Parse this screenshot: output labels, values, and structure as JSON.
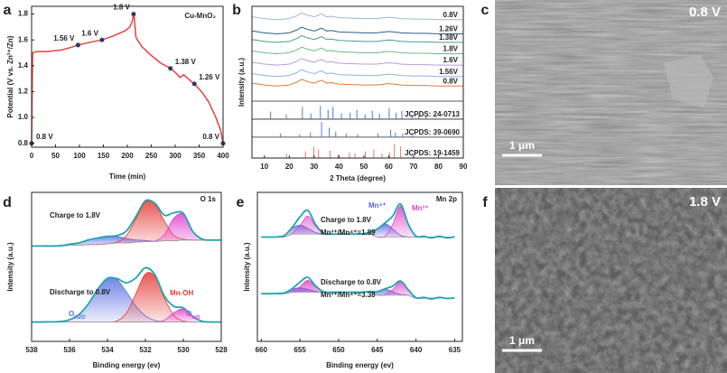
{
  "chart_data": [
    {
      "panel": "a",
      "type": "line",
      "annotation": "Cu-MnO₂",
      "x_label": "Time (min)",
      "y_label": "Potential (V vs. Zn²⁺/Zn)",
      "color": "#e8413c",
      "x": [
        0,
        2,
        10,
        30,
        60,
        80,
        97,
        120,
        147,
        170,
        195,
        205,
        210,
        213,
        214,
        218,
        230,
        250,
        270,
        290,
        300,
        310,
        318,
        330,
        340,
        355,
        370,
        385,
        395,
        400
      ],
      "values": [
        0.8,
        1.5,
        1.51,
        1.51,
        1.52,
        1.54,
        1.56,
        1.58,
        1.6,
        1.63,
        1.67,
        1.7,
        1.74,
        1.8,
        1.79,
        1.62,
        1.55,
        1.48,
        1.42,
        1.38,
        1.35,
        1.31,
        1.33,
        1.29,
        1.26,
        1.2,
        1.12,
        1.0,
        0.9,
        0.8
      ],
      "markers": {
        "color": "#2b3a67",
        "x": [
          0,
          97,
          147,
          213,
          290,
          340,
          400
        ],
        "values": [
          0.8,
          1.56,
          1.6,
          1.8,
          1.38,
          1.26,
          0.8
        ],
        "value_labels": [
          "0.8 V",
          "1.56 V",
          "1.6 V",
          "1.8 V",
          "1.38 V",
          "1.26 V",
          "0.8 V"
        ]
      },
      "xlim": [
        0,
        400
      ],
      "xticks": [
        0,
        50,
        100,
        150,
        200,
        250,
        300,
        350,
        400
      ],
      "ylim": [
        0.77,
        1.86
      ],
      "yticks": [
        0.8,
        {
          "value": 1,
          "label": "1.0"
        },
        1.2,
        1.4,
        1.6,
        1.8
      ]
    },
    {
      "panel": "b",
      "type": "waterfall",
      "x_label": "2 Theta (degree)",
      "y_label": "Intensity (a.u.)",
      "x": [
        5,
        10,
        15,
        20,
        23,
        25,
        27,
        30,
        33,
        35,
        37,
        40,
        45,
        50,
        55,
        60,
        62,
        65,
        70,
        75,
        80,
        85,
        90
      ],
      "series": [
        {
          "name": "0.8V",
          "color": "#9fb8d4",
          "values": [
            14.9,
            14.7,
            14.6,
            14.7,
            15.0,
            15.3,
            15.1,
            14.9,
            15.2,
            14.9,
            14.95,
            14.8,
            14.75,
            14.7,
            14.7,
            14.85,
            14.8,
            14.7,
            14.65,
            14.65,
            14.6,
            14.6,
            14.6
          ]
        },
        {
          "name": "1.26V",
          "color": "#2e5f8a",
          "values": [
            13.4,
            13.2,
            13.1,
            13.2,
            13.5,
            13.8,
            13.6,
            13.4,
            13.7,
            13.4,
            13.45,
            13.3,
            13.25,
            13.2,
            13.2,
            13.35,
            13.3,
            13.2,
            13.15,
            13.15,
            13.1,
            13.1,
            13.1
          ]
        },
        {
          "name": "1.38V",
          "color": "#4f9a94",
          "values": [
            12.5,
            12.3,
            12.2,
            12.3,
            12.6,
            12.9,
            12.7,
            12.5,
            12.8,
            12.5,
            12.55,
            12.4,
            12.35,
            12.3,
            12.3,
            12.45,
            12.4,
            12.3,
            12.25,
            12.25,
            12.2,
            12.2,
            12.2
          ]
        },
        {
          "name": "1.8V",
          "color": "#6fb889",
          "values": [
            11.3,
            11.1,
            11.0,
            11.1,
            11.4,
            11.7,
            11.5,
            11.3,
            11.6,
            11.3,
            11.35,
            11.2,
            11.15,
            11.1,
            11.1,
            11.25,
            11.2,
            11.1,
            11.05,
            11.05,
            11.0,
            11.0,
            11.0
          ]
        },
        {
          "name": "1.6V",
          "color": "#b49fd6",
          "values": [
            10.1,
            9.9,
            9.8,
            9.9,
            10.2,
            10.5,
            10.3,
            10.1,
            10.4,
            10.1,
            10.15,
            10.0,
            9.95,
            9.9,
            9.9,
            10.05,
            10.0,
            9.9,
            9.85,
            9.85,
            9.8,
            9.8,
            9.8
          ]
        },
        {
          "name": "1.56V",
          "color": "#8fb3e0",
          "values": [
            8.9,
            8.7,
            8.6,
            8.7,
            9.0,
            9.3,
            9.1,
            8.9,
            9.2,
            8.9,
            8.95,
            8.8,
            8.75,
            8.7,
            8.7,
            8.85,
            8.8,
            8.7,
            8.65,
            8.65,
            8.6,
            8.6,
            8.6
          ]
        },
        {
          "name": "0.8V",
          "color": "#e07a3f",
          "values": [
            7.9,
            7.7,
            7.6,
            7.7,
            8.0,
            8.3,
            8.1,
            7.9,
            8.2,
            7.9,
            7.95,
            7.8,
            7.75,
            7.7,
            7.7,
            7.85,
            7.8,
            7.7,
            7.65,
            7.65,
            7.6,
            7.6,
            7.6
          ]
        }
      ],
      "references": [
        {
          "name": "JCPDS: 24-0713",
          "color": "#4a7fd4",
          "baseline": 4.1,
          "positions": [
            12.5,
            18.8,
            25.3,
            28.7,
            32.5,
            35.6,
            37.6,
            41.0,
            44.5,
            47.2,
            50.5,
            53.4,
            56.3,
            60.2,
            63.0,
            65.3,
            69.4,
            72.1,
            75.0
          ],
          "heights": [
            0.8,
            0.5,
            1.3,
            0.6,
            1.4,
            1.0,
            1.3,
            0.6,
            0.7,
            1.0,
            0.5,
            0.9,
            0.6,
            1.2,
            0.7,
            0.9,
            0.4,
            0.5,
            0.3
          ]
        },
        {
          "name": "JCPDS: 39-0690",
          "color": "#4a7fd4",
          "baseline": 2.2,
          "positions": [
            16.5,
            24.2,
            28.5,
            33.0,
            36.1,
            38.7,
            42.9,
            47.5,
            55.7,
            60.8,
            62.7,
            65.6,
            69.6
          ],
          "heights": [
            0.4,
            0.3,
            0.5,
            1.6,
            1.0,
            0.6,
            0.4,
            0.3,
            0.4,
            0.8,
            0.5,
            0.4,
            0.3
          ]
        },
        {
          "name": "JCPDS: 19-1459",
          "color": "#e07a5f",
          "baseline": 0,
          "positions": [
            18.9,
            26.5,
            29.9,
            31.8,
            36.4,
            39.6,
            44.2,
            46.4,
            50.6,
            54.0,
            57.3,
            60.3,
            62.3,
            64.8
          ],
          "heights": [
            0.5,
            0.7,
            1.2,
            0.9,
            0.8,
            0.4,
            0.6,
            0.5,
            0.7,
            0.9,
            0.5,
            0.6,
            1.5,
            1.2
          ]
        }
      ],
      "xlim": [
        5,
        90
      ],
      "xticks": [
        10,
        20,
        30,
        40,
        50,
        60,
        70,
        80,
        90
      ],
      "ylim": [
        0,
        16
      ]
    },
    {
      "panel": "d",
      "type": "xps",
      "corner_label": "O 1s",
      "x_label": "Binding energy (ev)",
      "y_label": "Intensity (a.u.)",
      "envelope_color": "#1ea5ad",
      "background_color": "#a0a0a0",
      "components": [
        {
          "name": "O",
          "subscript": "H2O",
          "color": "#5a6fe0"
        },
        {
          "name": "Mn-OH",
          "color": "#e53935"
        },
        {
          "name": "O",
          "subscript": "latt",
          "color": "#e23bd0"
        }
      ],
      "x": [
        538,
        537.5,
        537,
        536.5,
        536,
        535.5,
        535,
        534.5,
        534,
        533.5,
        533,
        532.5,
        532,
        531.5,
        531,
        530.5,
        530,
        529.5,
        529,
        528.5,
        528
      ],
      "spectra": [
        {
          "label": "Charge to 1.8V",
          "envelope": [
            6.4,
            6.4,
            6.4,
            6.42,
            6.52,
            6.61,
            6.81,
            6.94,
            7.05,
            7.1,
            7.41,
            8.38,
            9.43,
            9.27,
            8.47,
            8.63,
            8.59,
            7.37,
            6.86,
            6.8,
            6.8
          ],
          "background": [
            6.4,
            6.4,
            6.4,
            6.4,
            6.45,
            6.45,
            6.5,
            6.5,
            6.55,
            6.6,
            6.6,
            6.65,
            6.7,
            6.7,
            6.75,
            6.75,
            6.8,
            6.8,
            6.8,
            6.8,
            6.8
          ],
          "components": [
            [
              6.4,
              6.4,
              6.4,
              6.42,
              6.52,
              6.61,
              6.81,
              6.94,
              7.05,
              7.04,
              6.91,
              6.81,
              6.77,
              6.72,
              6.75,
              6.75,
              6.8,
              6.8,
              6.8,
              6.8,
              6.8
            ],
            [
              6.4,
              6.4,
              6.4,
              6.4,
              6.45,
              6.45,
              6.5,
              6.5,
              6.55,
              6.66,
              7.1,
              8.22,
              9.36,
              9.22,
              8.07,
              7.11,
              6.86,
              6.8,
              6.8,
              6.8,
              6.8
            ],
            [
              6.4,
              6.4,
              6.4,
              6.4,
              6.45,
              6.45,
              6.5,
              6.5,
              6.55,
              6.6,
              6.6,
              6.65,
              6.7,
              6.73,
              7.15,
              8.27,
              8.53,
              7.37,
              6.86,
              6.8,
              6.8
            ]
          ]
        },
        {
          "label": "Discharge to 0.8V",
          "envelope": [
            1.3,
            1.3,
            1.31,
            1.33,
            1.45,
            1.8,
            2.53,
            3.52,
            4.23,
            4.21,
            3.93,
            4.26,
            4.94,
            4.48,
            3.04,
            2.35,
            2.25,
            1.67,
            1.35,
            1.3,
            1.3
          ],
          "background": [
            1.3,
            1.3,
            1.3,
            1.3,
            1.3,
            1.3,
            1.3,
            1.3,
            1.3,
            1.3,
            1.3,
            1.3,
            1.3,
            1.3,
            1.3,
            1.3,
            1.3,
            1.3,
            1.3,
            1.3,
            1.3
          ],
          "components": [
            [
              1.3,
              1.3,
              1.31,
              1.33,
              1.45,
              1.8,
              2.53,
              3.52,
              4.23,
              4.14,
              3.32,
              2.36,
              1.71,
              1.41,
              1.32,
              1.3,
              1.3,
              1.3,
              1.3,
              1.3,
              1.3
            ],
            [
              1.3,
              1.3,
              1.3,
              1.3,
              1.3,
              1.3,
              1.3,
              1.3,
              1.3,
              1.37,
              1.91,
              3.2,
              4.53,
              4.36,
              2.9,
              1.74,
              1.37,
              1.3,
              1.3,
              1.3,
              1.3
            ],
            [
              1.3,
              1.3,
              1.3,
              1.3,
              1.3,
              1.3,
              1.3,
              1.3,
              1.3,
              1.3,
              1.3,
              1.3,
              1.3,
              1.31,
              1.42,
              1.91,
              2.18,
              1.67,
              1.35,
              1.3,
              1.3
            ]
          ]
        }
      ],
      "xlim": [
        538,
        528
      ],
      "xticks": [
        538,
        536,
        534,
        532,
        530,
        528
      ],
      "ylim": [
        0,
        10
      ]
    },
    {
      "panel": "e",
      "type": "xps",
      "corner_label": "Mn 2p",
      "x_label": "Binding energy (ev)",
      "y_label": "Intensity (a.u.)",
      "envelope_color": "#1ea5ad",
      "background_color": "#a0a0a0",
      "components": [
        {
          "name": "Mn⁴⁺",
          "color": "#5566dd"
        },
        {
          "name": "Mn³⁺",
          "color": "#e040c8"
        }
      ],
      "x": [
        660,
        659,
        658,
        657,
        656,
        655,
        654,
        653,
        652,
        651,
        650,
        649,
        648,
        647,
        646,
        645,
        644,
        643,
        642,
        641,
        640,
        639,
        638,
        637,
        636,
        635
      ],
      "spectra": [
        {
          "label": "Charge to 1.8V",
          "ratio": "Mn³⁺/Mn⁴⁺=1.89",
          "envelope": [
            7.0,
            7.0,
            7.01,
            7.11,
            7.65,
            8.35,
            8.8,
            7.86,
            7.26,
            7.2,
            7.2,
            7.2,
            7.2,
            7.21,
            7.32,
            7.55,
            7.96,
            8.41,
            9.22,
            7.87,
            7.06,
            7.05,
            6.95,
            7.05,
            6.95,
            7.02
          ],
          "background": [
            7.0,
            7.0,
            7.0,
            7.0,
            7.2,
            7.2,
            7.2,
            7.2,
            7.2,
            7.2,
            7.2,
            7.2,
            7.2,
            7.2,
            7.2,
            7.0,
            7.0,
            7.0,
            7.0,
            7.0,
            7.0,
            7.0,
            7.0,
            7.0,
            7.0,
            7.0
          ],
          "components": [
            [
              7.0,
              7.0,
              7.01,
              7.11,
              7.6,
              7.8,
              7.6,
              7.31,
              7.21,
              7.2,
              7.2,
              7.2,
              7.2,
              7.21,
              7.32,
              7.55,
              7.9,
              7.55,
              7.12,
              7.01,
              7.0,
              7.0,
              7.0,
              7.0,
              7.0,
              7.0
            ],
            [
              7.0,
              7.0,
              7.0,
              7.0,
              7.25,
              7.75,
              8.4,
              7.75,
              7.25,
              7.2,
              7.2,
              7.2,
              7.2,
              7.2,
              7.2,
              7.0,
              7.06,
              7.86,
              9.1,
              7.86,
              7.06,
              7.0,
              7.0,
              7.0,
              7.0,
              7.0
            ]
          ]
        },
        {
          "label": "Discharge to 0.8V",
          "ratio": "Mn³⁺/Mn⁴⁺=3.38",
          "envelope": [
            3.2,
            3.2,
            3.21,
            3.26,
            3.54,
            3.97,
            4.3,
            3.73,
            3.34,
            3.3,
            3.3,
            3.3,
            3.3,
            3.3,
            3.35,
            3.34,
            3.53,
            3.71,
            4.05,
            3.47,
            2.93,
            2.95,
            2.85,
            2.95,
            2.88,
            2.92
          ],
          "background": [
            3.2,
            3.2,
            3.2,
            3.2,
            3.3,
            3.3,
            3.3,
            3.3,
            3.3,
            3.3,
            3.3,
            3.3,
            3.3,
            3.3,
            3.3,
            3.1,
            3.1,
            3.1,
            3.1,
            3.1,
            2.9,
            2.9,
            2.9,
            2.9,
            2.9,
            2.9
          ],
          "components": [
            [
              3.2,
              3.2,
              3.21,
              3.26,
              3.5,
              3.6,
              3.5,
              3.36,
              3.3,
              3.3,
              3.3,
              3.3,
              3.3,
              3.3,
              3.35,
              3.34,
              3.5,
              3.34,
              3.15,
              3.1,
              2.9,
              2.9,
              2.9,
              2.9,
              2.9,
              2.9
            ],
            [
              3.2,
              3.2,
              3.2,
              3.2,
              3.34,
              3.67,
              4.1,
              3.67,
              3.34,
              3.3,
              3.3,
              3.3,
              3.3,
              3.3,
              3.3,
              3.1,
              3.13,
              3.47,
              4.0,
              3.47,
              2.93,
              2.9,
              2.9,
              2.9,
              2.9,
              2.9
            ]
          ]
        }
      ],
      "xlim": [
        660.5,
        634
      ],
      "xticks": [
        660,
        655,
        650,
        645,
        640,
        635
      ],
      "ylim": [
        0,
        10
      ]
    }
  ],
  "images": [
    {
      "panel": "c",
      "caption": "0.8 V",
      "scale_bar": "1 μm"
    },
    {
      "panel": "f",
      "caption": "1.8 V",
      "scale_bar": "1 μm"
    }
  ]
}
